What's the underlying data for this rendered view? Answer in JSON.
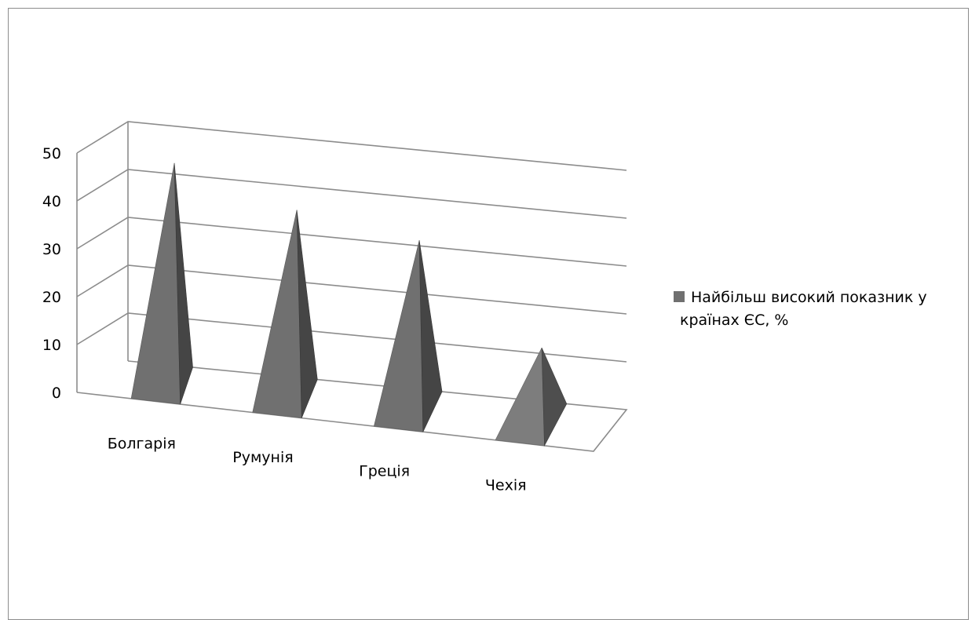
{
  "chart_data": {
    "type": "bar",
    "shape": "pyramid-3d",
    "categories": [
      "Болгарія",
      "Румунія",
      "Греція",
      "Чехія"
    ],
    "series": [
      {
        "name": "Найбільш високий показник у країнах ЄС, %",
        "values": [
          41,
          35,
          32,
          15
        ],
        "colors": [
          "#707070",
          "#707070",
          "#707070",
          "#7d7d7d"
        ]
      }
    ],
    "ylim": [
      0,
      50
    ],
    "yticks": [
      "0",
      "10",
      "20",
      "30",
      "40",
      "50"
    ],
    "grid": true,
    "legend": {
      "position": "right",
      "lines": [
        "Найбільш високий показник у",
        "країнах ЄС, %"
      ],
      "marker_color": "#707070"
    },
    "title": "",
    "xlabel": "",
    "ylabel": ""
  },
  "colors": {
    "frame": "#8c8c8c",
    "grid": "#8c8c8c"
  }
}
